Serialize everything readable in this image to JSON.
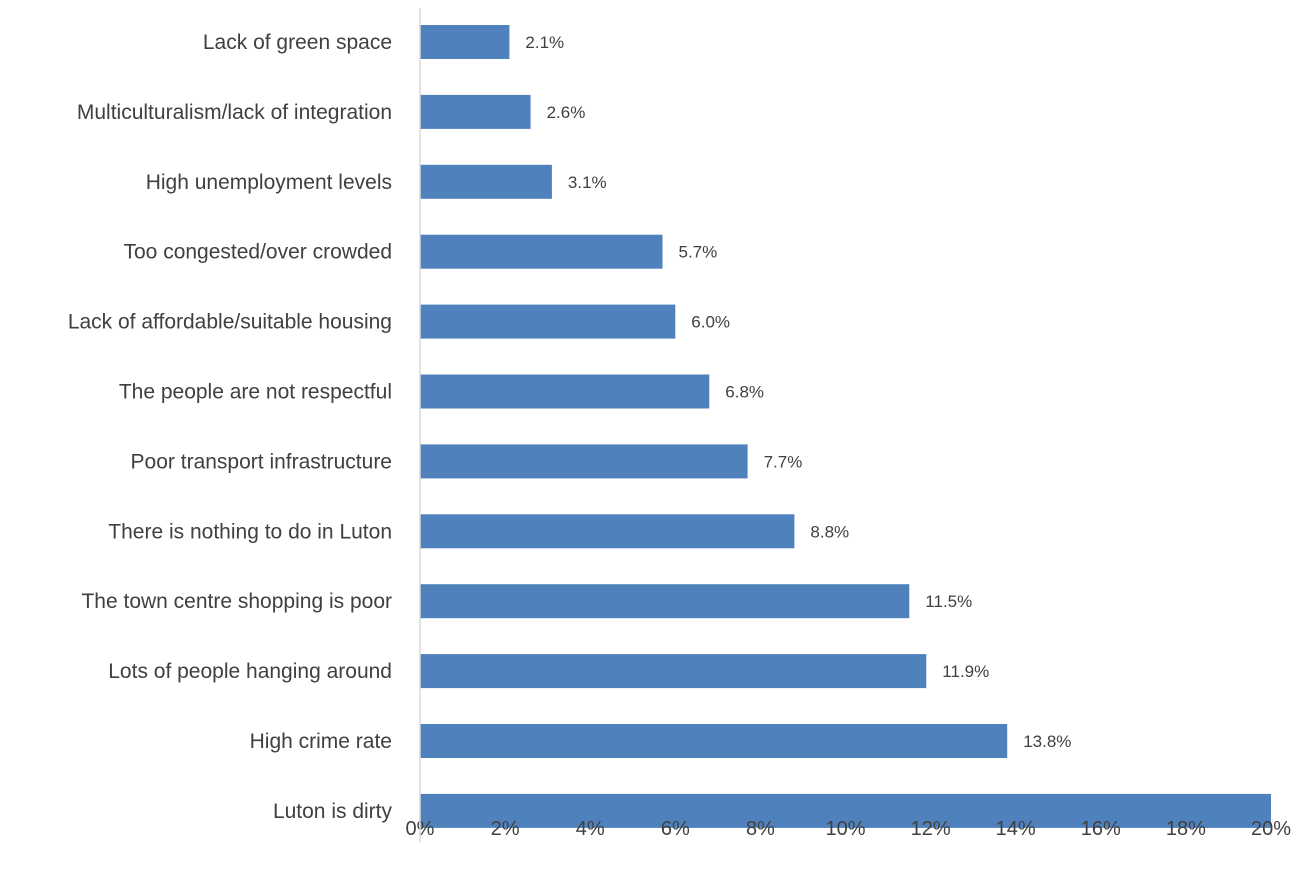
{
  "chart_data": {
    "type": "bar",
    "orientation": "horizontal",
    "categories": [
      "Lack of green space",
      "Multiculturalism/lack of integration",
      "High unemployment levels",
      "Too congested/over crowded",
      "Lack of affordable/suitable housing",
      "The people are not respectful",
      "Poor transport infrastructure",
      "There is nothing to do in Luton",
      "The town centre shopping is poor",
      "Lots of people hanging around",
      "High crime rate",
      "Luton is dirty"
    ],
    "values": [
      2.1,
      2.6,
      3.1,
      5.7,
      6.0,
      6.8,
      7.7,
      8.8,
      11.5,
      11.9,
      13.8,
      20.0
    ],
    "data_labels": [
      "2.1%",
      "2.6%",
      "3.1%",
      "5.7%",
      "6.0%",
      "6.8%",
      "7.7%",
      "8.8%",
      "11.5%",
      "11.9%",
      "13.8%",
      ""
    ],
    "x_ticks": [
      "0%",
      "2%",
      "4%",
      "6%",
      "8%",
      "10%",
      "12%",
      "14%",
      "16%",
      "18%",
      "20%"
    ],
    "xlim": [
      0,
      20
    ],
    "title": "",
    "xlabel": "",
    "ylabel": "",
    "grid": false,
    "legend": "none",
    "bar_color": "#4f81bd",
    "axis_color": "#d9d9d9",
    "text_color": "#404040"
  }
}
